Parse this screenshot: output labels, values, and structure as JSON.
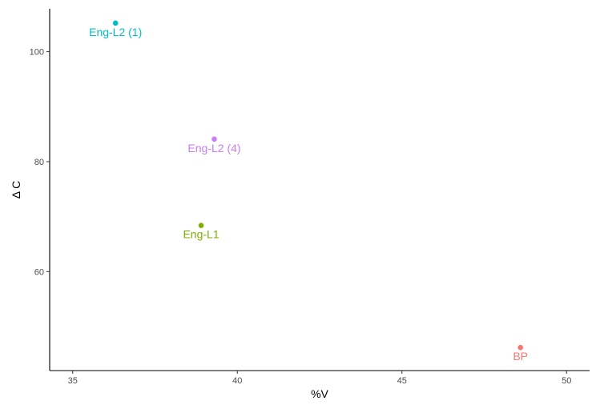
{
  "chart_data": {
    "type": "scatter",
    "title": "",
    "xlabel": "%V",
    "ylabel": "Δ C",
    "xlim": [
      34.3,
      50.7
    ],
    "ylim": [
      42.0,
      107.8
    ],
    "x_ticks": [
      35,
      40,
      45,
      50
    ],
    "y_ticks": [
      60,
      80,
      100
    ],
    "grid": false,
    "legend": "none",
    "points": [
      {
        "label": "Eng-L2 (1)",
        "x": 36.3,
        "y": 105.2,
        "color": "#00BFC4"
      },
      {
        "label": "Eng-L2 (4)",
        "x": 39.3,
        "y": 84.1,
        "color": "#C77CFF"
      },
      {
        "label": "Eng-L1",
        "x": 38.9,
        "y": 68.4,
        "color": "#7CAE00"
      },
      {
        "label": "BP",
        "x": 48.6,
        "y": 46.2,
        "color": "#F8766D"
      }
    ]
  }
}
